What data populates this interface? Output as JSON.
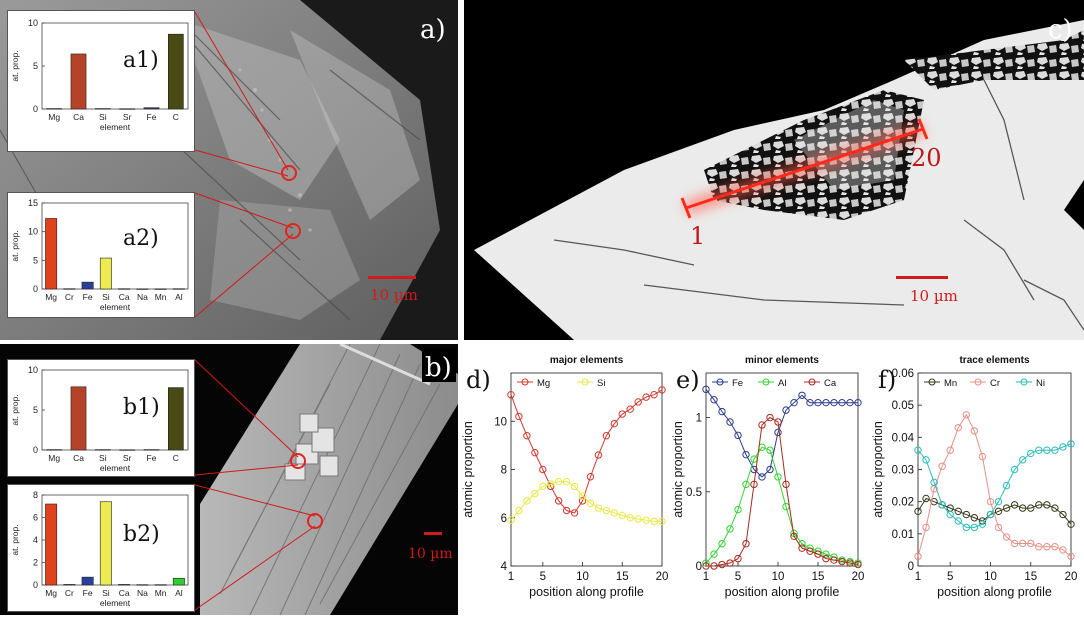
{
  "figure": {
    "panel_labels": {
      "a": "a)",
      "b": "b)",
      "c": "c)",
      "d": "d)",
      "e": "e)",
      "f": "f)"
    },
    "scale_bars": {
      "a": "10 µm",
      "b": "10 µm",
      "c": "10 µm"
    },
    "profile_labels": {
      "start": "1",
      "end": "20"
    },
    "colors": {
      "scale_bar": "#d11a1a",
      "profile_line": "#ff2a1a"
    }
  },
  "chart_data": [
    {
      "id": "a1",
      "type": "bar",
      "label": "a1)",
      "categories": [
        "Mg",
        "Ca",
        "Si",
        "Sr",
        "Fe",
        "C"
      ],
      "values": [
        0.05,
        6.4,
        0.05,
        0.03,
        0.15,
        8.7
      ],
      "colors": [
        "#d9431e",
        "#b5432a",
        "#d9d94a",
        "#2b3f8f",
        "#2b3f8f",
        "#4a4a14"
      ],
      "ylim": [
        0,
        10
      ],
      "yticks": [
        0,
        5,
        10
      ],
      "xlabel": "element",
      "ylabel": "at. prop."
    },
    {
      "id": "a2",
      "type": "bar",
      "label": "a2)",
      "categories": [
        "Mg",
        "Cr",
        "Fe",
        "Si",
        "Ca",
        "Na",
        "Mn",
        "Al"
      ],
      "values": [
        12.3,
        0.05,
        1.2,
        5.4,
        0.05,
        0.03,
        0.03,
        0.05
      ],
      "colors": [
        "#e0421e",
        "#8a2b1a",
        "#2b3f9a",
        "#ecec52",
        "#b5432a",
        "#2b3f8f",
        "#4a4a14",
        "#2fcf2f"
      ],
      "ylim": [
        0,
        15
      ],
      "yticks": [
        0,
        5,
        10,
        15
      ],
      "xlabel": "element",
      "ylabel": "at. prop."
    },
    {
      "id": "b1",
      "type": "bar",
      "label": "b1)",
      "categories": [
        "Mg",
        "Ca",
        "Si",
        "Sr",
        "Fe",
        "C"
      ],
      "values": [
        0.05,
        7.9,
        0.05,
        0.03,
        0.05,
        7.8
      ],
      "colors": [
        "#d9431e",
        "#b5432a",
        "#d9d94a",
        "#2b3f8f",
        "#2b3f8f",
        "#4a4a14"
      ],
      "ylim": [
        0,
        10
      ],
      "yticks": [
        0,
        5,
        10
      ],
      "xlabel": "element",
      "ylabel": "at. prop."
    },
    {
      "id": "b2",
      "type": "bar",
      "label": "b2)",
      "categories": [
        "Mg",
        "Cr",
        "Fe",
        "Si",
        "Ca",
        "Na",
        "Mn",
        "Al"
      ],
      "values": [
        7.2,
        0.05,
        0.7,
        7.4,
        0.05,
        0.03,
        0.03,
        0.6
      ],
      "colors": [
        "#e0421e",
        "#8a2b1a",
        "#2b3f9a",
        "#ecec52",
        "#b5432a",
        "#2b3f8f",
        "#4a4a14",
        "#2fcf2f"
      ],
      "ylim": [
        0,
        8
      ],
      "yticks": [
        0,
        2,
        4,
        6,
        8
      ],
      "xlabel": "element",
      "ylabel": "at. prop."
    },
    {
      "id": "d",
      "type": "line",
      "title": "major elements",
      "xlabel": "position along profile",
      "ylabel": "atomic proportion",
      "x": [
        1,
        2,
        3,
        4,
        5,
        6,
        7,
        8,
        9,
        10,
        11,
        12,
        13,
        14,
        15,
        16,
        17,
        18,
        19,
        20
      ],
      "xlim": [
        1,
        20
      ],
      "xticks": [
        1,
        5,
        10,
        15,
        20
      ],
      "ylim": [
        4,
        12
      ],
      "yticks": [
        4,
        6,
        8,
        10
      ],
      "legend": "top",
      "series": [
        {
          "name": "Mg",
          "color": "#cf3a2e",
          "values": [
            11.1,
            10.2,
            9.4,
            8.7,
            8.0,
            7.3,
            6.7,
            6.3,
            6.2,
            6.7,
            7.7,
            8.6,
            9.4,
            9.9,
            10.3,
            10.5,
            10.8,
            11.0,
            11.1,
            11.3
          ]
        },
        {
          "name": "Si",
          "color": "#e8e845",
          "values": [
            5.9,
            6.3,
            6.7,
            7.0,
            7.3,
            7.4,
            7.5,
            7.5,
            7.3,
            6.9,
            6.6,
            6.4,
            6.3,
            6.2,
            6.1,
            6.0,
            5.95,
            5.9,
            5.85,
            5.85
          ]
        }
      ]
    },
    {
      "id": "e",
      "type": "line",
      "title": "minor elements",
      "xlabel": "position along profile",
      "ylabel": "atomic proportion",
      "x": [
        1,
        2,
        3,
        4,
        5,
        6,
        7,
        8,
        9,
        10,
        11,
        12,
        13,
        14,
        15,
        16,
        17,
        18,
        19,
        20
      ],
      "xlim": [
        1,
        20
      ],
      "xticks": [
        1,
        5,
        10,
        15,
        20
      ],
      "ylim": [
        0,
        1.3
      ],
      "yticks": [
        0,
        0.5,
        1
      ],
      "legend": "top",
      "series": [
        {
          "name": "Fe",
          "color": "#2b3a8f",
          "values": [
            1.19,
            1.12,
            1.04,
            0.97,
            0.88,
            0.75,
            0.65,
            0.6,
            0.65,
            0.9,
            1.05,
            1.1,
            1.15,
            1.1,
            1.1,
            1.1,
            1.1,
            1.1,
            1.1,
            1.1
          ]
        },
        {
          "name": "Al",
          "color": "#32d432",
          "values": [
            0.02,
            0.08,
            0.15,
            0.25,
            0.38,
            0.55,
            0.72,
            0.8,
            0.78,
            0.6,
            0.4,
            0.22,
            0.15,
            0.12,
            0.1,
            0.08,
            0.06,
            0.04,
            0.03,
            0.02
          ]
        },
        {
          "name": "Ca",
          "color": "#a82a1f",
          "values": [
            0.0,
            0.0,
            0.01,
            0.02,
            0.05,
            0.15,
            0.55,
            0.95,
            1.0,
            0.97,
            0.55,
            0.2,
            0.12,
            0.1,
            0.08,
            0.05,
            0.04,
            0.03,
            0.02,
            0.01
          ]
        }
      ]
    },
    {
      "id": "f",
      "type": "line",
      "title": "trace elements",
      "xlabel": "position along profile",
      "ylabel": "atomic proportion",
      "x": [
        1,
        2,
        3,
        4,
        5,
        6,
        7,
        8,
        9,
        10,
        11,
        12,
        13,
        14,
        15,
        16,
        17,
        18,
        19,
        20
      ],
      "xlim": [
        1,
        20
      ],
      "xticks": [
        1,
        5,
        10,
        15,
        20
      ],
      "ylim": [
        0,
        0.06
      ],
      "yticks": [
        0,
        0.01,
        0.02,
        0.03,
        0.04,
        0.05,
        0.06
      ],
      "legend": "top",
      "series": [
        {
          "name": "Mn",
          "color": "#3a3a1c",
          "values": [
            0.017,
            0.021,
            0.02,
            0.019,
            0.018,
            0.017,
            0.016,
            0.015,
            0.014,
            0.016,
            0.017,
            0.018,
            0.019,
            0.018,
            0.018,
            0.019,
            0.019,
            0.018,
            0.016,
            0.013
          ]
        },
        {
          "name": "Cr",
          "color": "#e69087",
          "values": [
            0.003,
            0.012,
            0.024,
            0.031,
            0.036,
            0.043,
            0.047,
            0.042,
            0.034,
            0.02,
            0.012,
            0.009,
            0.007,
            0.007,
            0.007,
            0.006,
            0.006,
            0.006,
            0.005,
            0.003
          ]
        },
        {
          "name": "Ni",
          "color": "#2cbcbc",
          "values": [
            0.036,
            0.033,
            0.026,
            0.019,
            0.016,
            0.014,
            0.012,
            0.012,
            0.013,
            0.016,
            0.02,
            0.025,
            0.03,
            0.033,
            0.035,
            0.036,
            0.036,
            0.036,
            0.037,
            0.038
          ]
        }
      ]
    }
  ]
}
